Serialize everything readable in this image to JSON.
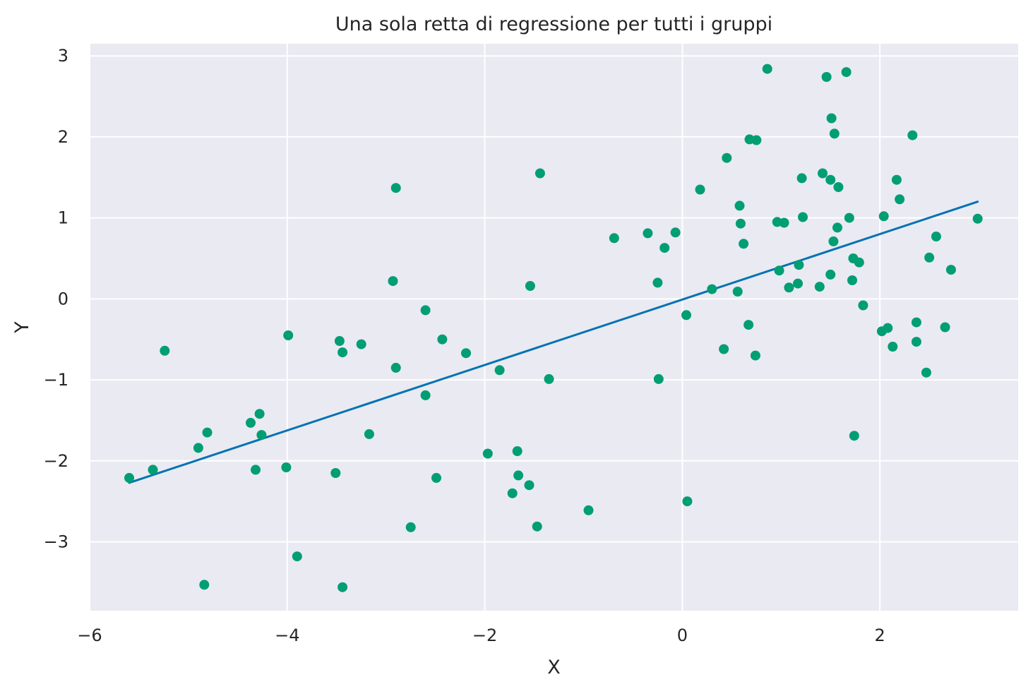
{
  "chart_data": {
    "type": "scatter",
    "title": "Una sola retta di regressione per tutti i gruppi",
    "xlabel": "X",
    "ylabel": "Y",
    "xlim": [
      -6,
      3.4
    ],
    "ylim": [
      -3.85,
      3.15
    ],
    "grid": true,
    "background": "#EAEAF2",
    "x_ticks": [
      -6,
      -4,
      -2,
      0,
      2
    ],
    "x_tick_labels": [
      "−6",
      "−4",
      "−2",
      "0",
      "2"
    ],
    "y_ticks": [
      -3,
      -2,
      -1,
      0,
      1,
      2,
      3
    ],
    "y_tick_labels": [
      "−3",
      "−2",
      "−1",
      "0",
      "1",
      "2",
      "3"
    ],
    "series": [
      {
        "kind": "points",
        "color": "#009E73",
        "points": [
          [
            -5.6,
            -2.21
          ],
          [
            -5.36,
            -2.11
          ],
          [
            -5.24,
            -0.64
          ],
          [
            -4.9,
            -1.84
          ],
          [
            -4.84,
            -3.53
          ],
          [
            -4.81,
            -1.65
          ],
          [
            -4.37,
            -1.53
          ],
          [
            -4.32,
            -2.11
          ],
          [
            -4.28,
            -1.42
          ],
          [
            -4.26,
            -1.68
          ],
          [
            -4.01,
            -2.08
          ],
          [
            -3.99,
            -0.45
          ],
          [
            -3.9,
            -3.18
          ],
          [
            -3.51,
            -2.15
          ],
          [
            -3.47,
            -0.52
          ],
          [
            -3.44,
            -0.66
          ],
          [
            -3.44,
            -3.56
          ],
          [
            -3.25,
            -0.56
          ],
          [
            -3.17,
            -1.67
          ],
          [
            -2.93,
            0.22
          ],
          [
            -2.9,
            1.37
          ],
          [
            -2.9,
            -0.85
          ],
          [
            -2.75,
            -2.82
          ],
          [
            -2.6,
            -0.14
          ],
          [
            -2.6,
            -1.19
          ],
          [
            -2.49,
            -2.21
          ],
          [
            -2.43,
            -0.5
          ],
          [
            -2.19,
            -0.67
          ],
          [
            -1.97,
            -1.91
          ],
          [
            -1.85,
            -0.88
          ],
          [
            -1.72,
            -2.4
          ],
          [
            -1.67,
            -1.88
          ],
          [
            -1.66,
            -2.18
          ],
          [
            -1.55,
            -2.3
          ],
          [
            -1.54,
            0.16
          ],
          [
            -1.47,
            -2.81
          ],
          [
            -1.44,
            1.55
          ],
          [
            -1.35,
            -0.99
          ],
          [
            -0.95,
            -2.61
          ],
          [
            -0.69,
            0.75
          ],
          [
            -0.35,
            0.81
          ],
          [
            -0.25,
            0.2
          ],
          [
            -0.24,
            -0.99
          ],
          [
            -0.18,
            0.63
          ],
          [
            -0.07,
            0.82
          ],
          [
            0.04,
            -0.2
          ],
          [
            0.05,
            -2.5
          ],
          [
            0.18,
            1.35
          ],
          [
            0.3,
            0.12
          ],
          [
            0.42,
            -0.62
          ],
          [
            0.45,
            1.74
          ],
          [
            0.56,
            0.09
          ],
          [
            0.58,
            1.15
          ],
          [
            0.59,
            0.93
          ],
          [
            0.62,
            0.68
          ],
          [
            0.67,
            -0.32
          ],
          [
            0.68,
            1.97
          ],
          [
            0.74,
            -0.7
          ],
          [
            0.75,
            1.96
          ],
          [
            0.86,
            2.84
          ],
          [
            0.96,
            0.95
          ],
          [
            0.98,
            0.35
          ],
          [
            1.03,
            0.94
          ],
          [
            1.08,
            0.14
          ],
          [
            1.17,
            0.19
          ],
          [
            1.18,
            0.42
          ],
          [
            1.21,
            1.49
          ],
          [
            1.22,
            1.01
          ],
          [
            1.39,
            0.15
          ],
          [
            1.42,
            1.55
          ],
          [
            1.46,
            2.74
          ],
          [
            1.5,
            1.47
          ],
          [
            1.5,
            0.3
          ],
          [
            1.51,
            2.23
          ],
          [
            1.53,
            0.71
          ],
          [
            1.54,
            2.04
          ],
          [
            1.57,
            0.88
          ],
          [
            1.58,
            1.38
          ],
          [
            1.66,
            2.8
          ],
          [
            1.69,
            1.0
          ],
          [
            1.72,
            0.23
          ],
          [
            1.73,
            0.5
          ],
          [
            1.74,
            -1.69
          ],
          [
            1.79,
            0.45
          ],
          [
            1.83,
            -0.08
          ],
          [
            2.02,
            -0.4
          ],
          [
            2.04,
            1.02
          ],
          [
            2.08,
            -0.36
          ],
          [
            2.13,
            -0.59
          ],
          [
            2.17,
            1.47
          ],
          [
            2.2,
            1.23
          ],
          [
            2.33,
            2.02
          ],
          [
            2.37,
            -0.29
          ],
          [
            2.37,
            -0.53
          ],
          [
            2.47,
            -0.91
          ],
          [
            2.5,
            0.51
          ],
          [
            2.57,
            0.77
          ],
          [
            2.66,
            -0.35
          ],
          [
            2.72,
            0.36
          ],
          [
            2.99,
            0.99
          ]
        ]
      },
      {
        "kind": "line",
        "color": "#0173B2",
        "points": [
          [
            -5.6,
            -2.27
          ],
          [
            2.99,
            1.2
          ]
        ]
      }
    ]
  }
}
